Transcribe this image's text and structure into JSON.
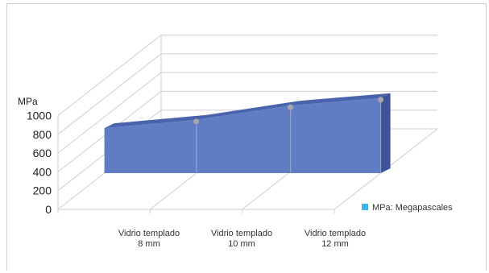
{
  "chart_data": {
    "type": "area",
    "style": "3d",
    "ylabel": "MPa",
    "ylim": [
      0,
      1000
    ],
    "yticks": [
      "0",
      "200",
      "400",
      "600",
      "800",
      "1000"
    ],
    "categories": [
      [
        "Vidrio templado",
        "8 mm"
      ],
      [
        "Vidrio templado",
        "10 mm"
      ],
      [
        "Vidrio templado",
        "12 mm"
      ]
    ],
    "series": [
      {
        "name": "MPa: Megapascales",
        "values": [
          600,
          800,
          1000
        ],
        "color": "#5f7cc4"
      }
    ],
    "grid": true,
    "legend": "right"
  }
}
